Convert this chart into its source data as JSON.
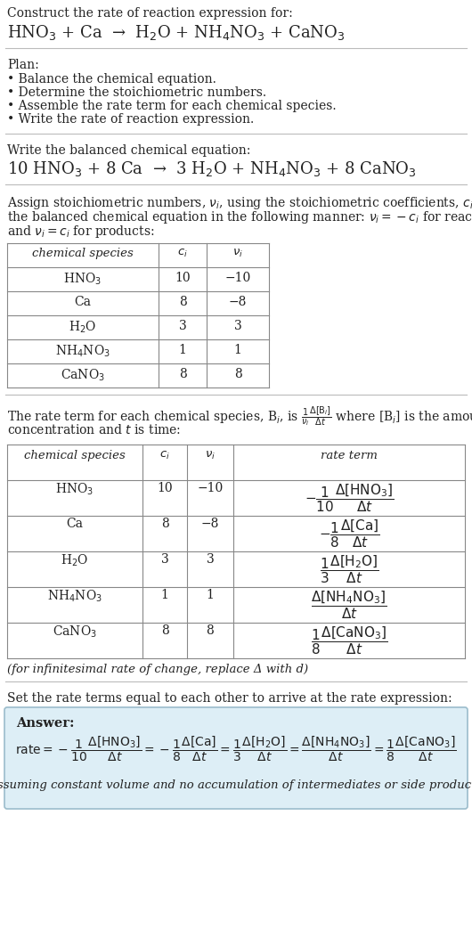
{
  "title_line1": "Construct the rate of reaction expression for:",
  "title_line2": "HNO$_3$ + Ca  →  H$_2$O + NH$_4$NO$_3$ + CaNO$_3$",
  "plan_header": "Plan:",
  "plan_items": [
    "• Balance the chemical equation.",
    "• Determine the stoichiometric numbers.",
    "• Assemble the rate term for each chemical species.",
    "• Write the rate of reaction expression."
  ],
  "balanced_header": "Write the balanced chemical equation:",
  "balanced_eq": "10 HNO$_3$ + 8 Ca  →  3 H$_2$O + NH$_4$NO$_3$ + 8 CaNO$_3$",
  "stoich_intro_parts": [
    "Assign stoichiometric numbers, $\\nu_i$, using the stoichiometric coefficients, $c_i$, from",
    "the balanced chemical equation in the following manner: $\\nu_i = -c_i$ for reactants",
    "and $\\nu_i = c_i$ for products:"
  ],
  "table1_headers": [
    "chemical species",
    "$c_i$",
    "$\\nu_i$"
  ],
  "table1_rows": [
    [
      "HNO$_3$",
      "10",
      "−10"
    ],
    [
      "Ca",
      "8",
      "−8"
    ],
    [
      "H$_2$O",
      "3",
      "3"
    ],
    [
      "NH$_4$NO$_3$",
      "1",
      "1"
    ],
    [
      "CaNO$_3$",
      "8",
      "8"
    ]
  ],
  "rate_intro_parts": [
    "The rate term for each chemical species, B$_i$, is $\\frac{1}{\\nu_i}\\frac{\\Delta[\\mathrm{B}_i]}{\\Delta t}$ where [B$_i$] is the amount",
    "concentration and $t$ is time:"
  ],
  "table2_headers": [
    "chemical species",
    "$c_i$",
    "$\\nu_i$",
    "rate term"
  ],
  "table2_rows": [
    [
      "HNO$_3$",
      "10",
      "−10",
      "$-\\dfrac{1}{10}\\dfrac{\\Delta[\\mathrm{HNO_3}]}{\\Delta t}$"
    ],
    [
      "Ca",
      "8",
      "−8",
      "$-\\dfrac{1}{8}\\dfrac{\\Delta[\\mathrm{Ca}]}{\\Delta t}$"
    ],
    [
      "H$_2$O",
      "3",
      "3",
      "$\\dfrac{1}{3}\\dfrac{\\Delta[\\mathrm{H_2O}]}{\\Delta t}$"
    ],
    [
      "NH$_4$NO$_3$",
      "1",
      "1",
      "$\\dfrac{\\Delta[\\mathrm{NH_4NO_3}]}{\\Delta t}$"
    ],
    [
      "CaNO$_3$",
      "8",
      "8",
      "$\\dfrac{1}{8}\\dfrac{\\Delta[\\mathrm{CaNO_3}]}{\\Delta t}$"
    ]
  ],
  "infinitesimal_note": "(for infinitesimal rate of change, replace Δ with d)",
  "set_equal_text": "Set the rate terms equal to each other to arrive at the rate expression:",
  "answer_label": "Answer:",
  "answer_rate": "$\\mathrm{rate} = -\\dfrac{1}{10}\\dfrac{\\Delta[\\mathrm{HNO_3}]}{\\Delta t} = -\\dfrac{1}{8}\\dfrac{\\Delta[\\mathrm{Ca}]}{\\Delta t} = \\dfrac{1}{3}\\dfrac{\\Delta[\\mathrm{H_2O}]}{\\Delta t} = \\dfrac{\\Delta[\\mathrm{NH_4NO_3}]}{\\Delta t} = \\dfrac{1}{8}\\dfrac{\\Delta[\\mathrm{CaNO_3}]}{\\Delta t}$",
  "answer_note": "(assuming constant volume and no accumulation of intermediates or side products)",
  "bg_color": "#ffffff",
  "answer_bg": "#ddeef6",
  "text_color": "#222222",
  "table_border": "#888888",
  "sep_color": "#bbbbbb",
  "fig_w": 5.3,
  "fig_h": 10.44,
  "dpi": 100
}
